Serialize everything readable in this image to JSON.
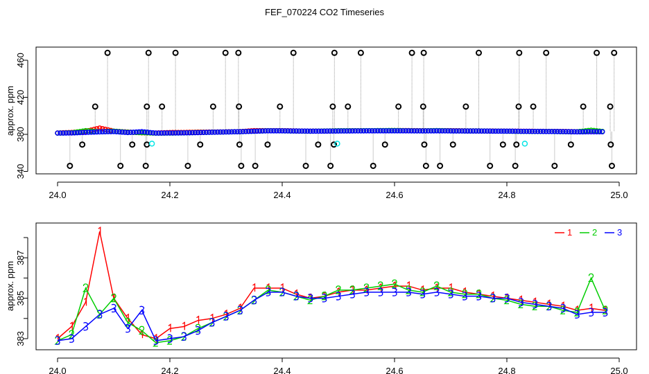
{
  "chart_data": [
    {
      "type": "scatter",
      "title": "FEF_070224  CO2 Timeseries",
      "xlabel": "",
      "ylabel": "approx. ppm",
      "xlim": [
        23.96,
        25.03
      ],
      "ylim": [
        337,
        472
      ],
      "xticks": [
        24.0,
        24.2,
        24.4,
        24.6,
        24.8,
        25.0
      ],
      "xtick_labels": [
        "24.0",
        "24.2",
        "24.4",
        "24.6",
        "24.8",
        "25.0"
      ],
      "yticks": [
        340,
        380,
        420,
        460
      ],
      "ytick_labels": [
        "340",
        "380",
        "420",
        "460"
      ],
      "baseline_offset": -1.5,
      "outliers": {
        "color": "#000000",
        "points": [
          [
            24.089,
            468
          ],
          [
            24.162,
            468
          ],
          [
            24.21,
            468
          ],
          [
            24.299,
            468
          ],
          [
            24.322,
            468
          ],
          [
            24.42,
            468
          ],
          [
            24.493,
            468
          ],
          [
            24.54,
            468
          ],
          [
            24.631,
            468
          ],
          [
            24.652,
            468
          ],
          [
            24.75,
            468
          ],
          [
            24.822,
            468
          ],
          [
            24.87,
            468
          ],
          [
            24.96,
            468
          ],
          [
            24.991,
            468
          ],
          [
            24.067,
            410
          ],
          [
            24.159,
            410
          ],
          [
            24.186,
            410
          ],
          [
            24.277,
            410
          ],
          [
            24.323,
            410
          ],
          [
            24.396,
            410
          ],
          [
            24.49,
            410
          ],
          [
            24.517,
            410
          ],
          [
            24.607,
            410
          ],
          [
            24.651,
            410
          ],
          [
            24.727,
            410
          ],
          [
            24.821,
            410
          ],
          [
            24.847,
            410
          ],
          [
            24.936,
            410
          ],
          [
            24.984,
            410
          ],
          [
            24.044,
            369
          ],
          [
            24.133,
            369
          ],
          [
            24.159,
            369
          ],
          [
            24.254,
            369
          ],
          [
            24.324,
            369
          ],
          [
            24.374,
            369
          ],
          [
            24.464,
            369
          ],
          [
            24.492,
            369
          ],
          [
            24.583,
            369
          ],
          [
            24.653,
            369
          ],
          [
            24.704,
            369
          ],
          [
            24.793,
            369
          ],
          [
            24.817,
            369
          ],
          [
            24.914,
            369
          ],
          [
            24.985,
            369
          ],
          [
            24.022,
            346
          ],
          [
            24.112,
            346
          ],
          [
            24.157,
            346
          ],
          [
            24.232,
            346
          ],
          [
            24.327,
            346
          ],
          [
            24.352,
            346
          ],
          [
            24.442,
            346
          ],
          [
            24.486,
            346
          ],
          [
            24.562,
            346
          ],
          [
            24.656,
            346
          ],
          [
            24.681,
            346
          ],
          [
            24.77,
            346
          ],
          [
            24.815,
            346
          ],
          [
            24.885,
            346
          ],
          [
            24.987,
            346
          ]
        ]
      },
      "flagged": {
        "color": "#00e5e5",
        "points": [
          [
            24.168,
            370
          ],
          [
            24.498,
            370
          ],
          [
            24.832,
            370
          ]
        ]
      }
    },
    {
      "type": "line",
      "xlabel": "",
      "ylabel": "approx. ppm",
      "xlim": [
        23.96,
        25.03
      ],
      "ylim": [
        382.45,
        388.7
      ],
      "xticks": [
        24.0,
        24.2,
        24.4,
        24.6,
        24.8,
        25.0
      ],
      "xtick_labels": [
        "24.0",
        "24.2",
        "24.4",
        "24.6",
        "24.8",
        "25.0"
      ],
      "yticks": [
        383,
        384,
        385,
        386,
        387,
        388
      ],
      "ytick_labels": [
        "383",
        "",
        "385",
        "",
        "387",
        ""
      ],
      "x": [
        24.0,
        24.025,
        24.05,
        24.075,
        24.1,
        24.125,
        24.15,
        24.175,
        24.2,
        24.225,
        24.25,
        24.275,
        24.3,
        24.325,
        24.35,
        24.375,
        24.4,
        24.425,
        24.45,
        24.475,
        24.5,
        24.525,
        24.55,
        24.575,
        24.6,
        24.625,
        24.65,
        24.675,
        24.7,
        24.725,
        24.75,
        24.775,
        24.8,
        24.825,
        24.85,
        24.875,
        24.9,
        24.925,
        24.95,
        24.975
      ],
      "series": [
        {
          "name": "1",
          "color": "#ff0000",
          "values": [
            383.0,
            383.6,
            384.8,
            388.3,
            385.0,
            384.0,
            383.2,
            383.0,
            383.5,
            383.6,
            383.9,
            384.0,
            384.2,
            384.5,
            385.5,
            385.5,
            385.5,
            385.2,
            385.0,
            385.1,
            385.3,
            385.4,
            385.4,
            385.5,
            385.6,
            385.6,
            385.4,
            385.5,
            385.5,
            385.3,
            385.2,
            385.1,
            385.0,
            384.9,
            384.8,
            384.7,
            384.6,
            384.4,
            384.5,
            384.4
          ]
        },
        {
          "name": "2",
          "color": "#00cd00",
          "values": [
            382.9,
            383.2,
            385.5,
            384.2,
            385.0,
            383.8,
            383.4,
            382.8,
            382.9,
            383.1,
            383.5,
            383.8,
            384.1,
            384.4,
            384.9,
            385.4,
            385.3,
            385.1,
            384.9,
            385.1,
            385.4,
            385.4,
            385.5,
            385.6,
            385.7,
            385.4,
            385.3,
            385.6,
            385.3,
            385.2,
            385.2,
            385.0,
            384.9,
            384.7,
            384.6,
            384.6,
            384.4,
            384.3,
            386.0,
            384.4
          ]
        },
        {
          "name": "3",
          "color": "#0000ff",
          "values": [
            382.9,
            383.0,
            383.6,
            384.2,
            384.5,
            383.5,
            384.4,
            382.9,
            383.0,
            383.1,
            383.4,
            383.8,
            384.1,
            384.4,
            384.9,
            385.3,
            385.3,
            385.1,
            385.0,
            385.0,
            385.1,
            385.2,
            385.3,
            385.3,
            385.3,
            385.3,
            385.2,
            385.3,
            385.2,
            385.1,
            385.1,
            385.0,
            385.0,
            384.8,
            384.7,
            384.6,
            384.5,
            384.2,
            384.3,
            384.3
          ]
        }
      ]
    }
  ]
}
